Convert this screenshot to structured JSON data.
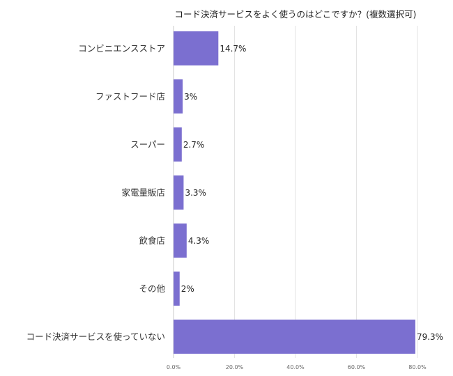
{
  "chart_data": {
    "type": "bar",
    "orientation": "horizontal",
    "title": "コード決済サービスをよく使うのはどこですか？(複数選択可)",
    "xlabel": "",
    "ylabel": "",
    "categories": [
      "コンビニエンスストア",
      "ファストフード店",
      "スーパー",
      "家電量販店",
      "飲食店",
      "その他",
      "コード決済サービスを使っていない"
    ],
    "values": [
      14.7,
      3,
      2.7,
      3.3,
      4.3,
      2,
      79.3
    ],
    "data_labels": [
      "14.7%",
      "3%",
      "2.7%",
      "3.3%",
      "4.3%",
      "2%",
      "79.3%"
    ],
    "xlim": [
      0,
      80
    ],
    "ticks": [
      0,
      20,
      40,
      60,
      80
    ],
    "tick_labels": [
      "0.0%",
      "20.0%",
      "40.0%",
      "60.0%",
      "80.0%"
    ],
    "grid": true,
    "legend": "none",
    "bar_color": "#7b6fd0"
  }
}
